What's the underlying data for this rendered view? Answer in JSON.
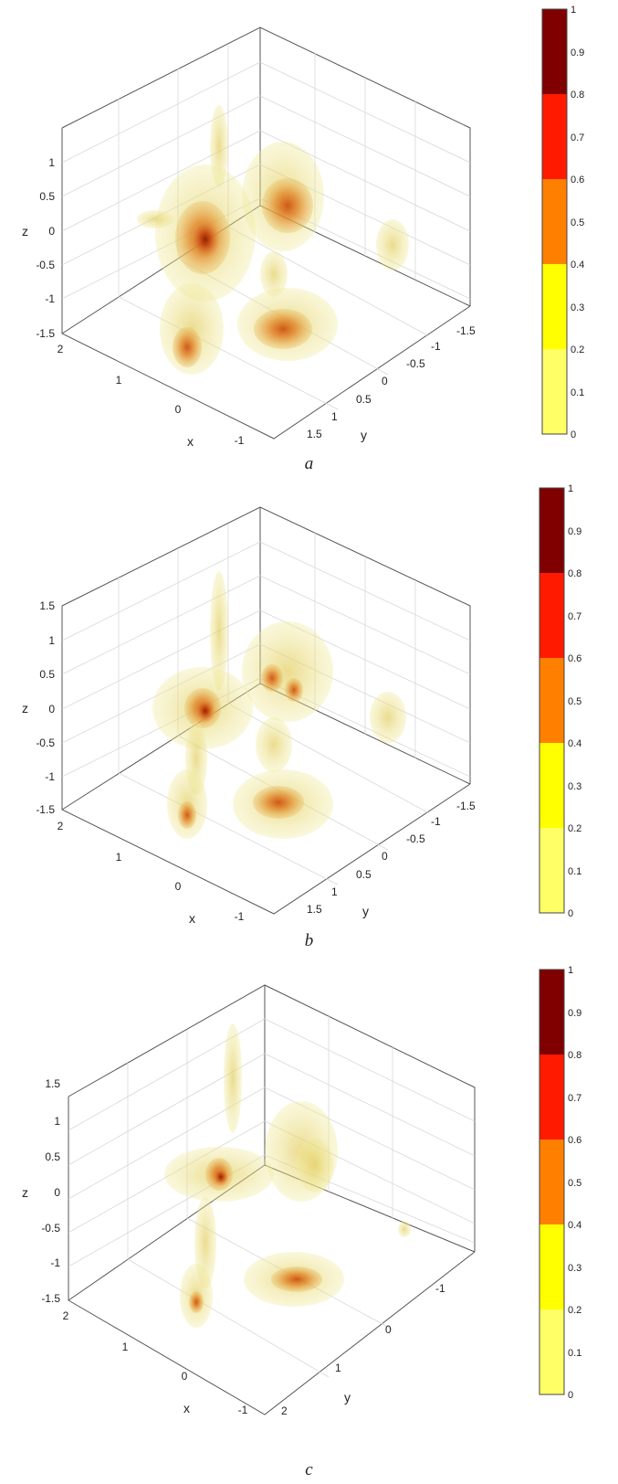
{
  "chart_data": [
    {
      "type": "volume-isosurface-3d",
      "caption": "a",
      "x_ticks": [
        "2",
        "1",
        "0",
        "-1"
      ],
      "y_ticks": [
        "1.5",
        "1",
        "0.5",
        "0",
        "-0.5",
        "-1",
        "-1.5"
      ],
      "z_ticks": [
        "1",
        "0.5",
        "0",
        "-0.5",
        "-1",
        "-1.5"
      ],
      "xlabel": "x",
      "ylabel": "y",
      "zlabel": "z",
      "colorbar": {
        "ticks": [
          "1",
          "0.9",
          "0.8",
          "0.7",
          "0.6",
          "0.5",
          "0.4",
          "0.3",
          "0.2",
          "0.1",
          "0"
        ],
        "bands": [
          {
            "from": 0.8,
            "to": 1.0,
            "color": "#800000"
          },
          {
            "from": 0.6,
            "to": 0.8,
            "color": "#ff1a00"
          },
          {
            "from": 0.4,
            "to": 0.6,
            "color": "#ff8000"
          },
          {
            "from": 0.2,
            "to": 0.4,
            "color": "#ffff00"
          },
          {
            "from": 0.0,
            "to": 0.2,
            "color": "#ffff66"
          }
        ]
      }
    },
    {
      "type": "volume-isosurface-3d",
      "caption": "b",
      "x_ticks": [
        "2",
        "1",
        "0",
        "-1"
      ],
      "y_ticks": [
        "1.5",
        "1",
        "0.5",
        "0",
        "-0.5",
        "-1",
        "-1.5"
      ],
      "z_ticks": [
        "1.5",
        "1",
        "0.5",
        "0",
        "-0.5",
        "-1",
        "-1.5"
      ],
      "xlabel": "x",
      "ylabel": "y",
      "zlabel": "z",
      "colorbar": {
        "ticks": [
          "1",
          "0.9",
          "0.8",
          "0.7",
          "0.6",
          "0.5",
          "0.4",
          "0.3",
          "0.2",
          "0.1",
          "0"
        ],
        "bands": [
          {
            "from": 0.8,
            "to": 1.0,
            "color": "#800000"
          },
          {
            "from": 0.6,
            "to": 0.8,
            "color": "#ff1a00"
          },
          {
            "from": 0.4,
            "to": 0.6,
            "color": "#ff8000"
          },
          {
            "from": 0.2,
            "to": 0.4,
            "color": "#ffff00"
          },
          {
            "from": 0.0,
            "to": 0.2,
            "color": "#ffff66"
          }
        ]
      }
    },
    {
      "type": "volume-isosurface-3d",
      "caption": "c",
      "x_ticks": [
        "2",
        "1",
        "0",
        "-1"
      ],
      "y_ticks": [
        "2",
        "1",
        "0",
        "-1"
      ],
      "z_ticks": [
        "1.5",
        "1",
        "0.5",
        "0",
        "-0.5",
        "-1",
        "-1.5"
      ],
      "xlabel": "x",
      "ylabel": "y",
      "zlabel": "z",
      "colorbar": {
        "ticks": [
          "1",
          "0.9",
          "0.8",
          "0.7",
          "0.6",
          "0.5",
          "0.4",
          "0.3",
          "0.2",
          "0.1",
          "0"
        ],
        "bands": [
          {
            "from": 0.8,
            "to": 1.0,
            "color": "#800000"
          },
          {
            "from": 0.6,
            "to": 0.8,
            "color": "#ff1a00"
          },
          {
            "from": 0.4,
            "to": 0.6,
            "color": "#ff8000"
          },
          {
            "from": 0.2,
            "to": 0.4,
            "color": "#ffff00"
          },
          {
            "from": 0.0,
            "to": 0.2,
            "color": "#ffff66"
          }
        ]
      }
    }
  ]
}
